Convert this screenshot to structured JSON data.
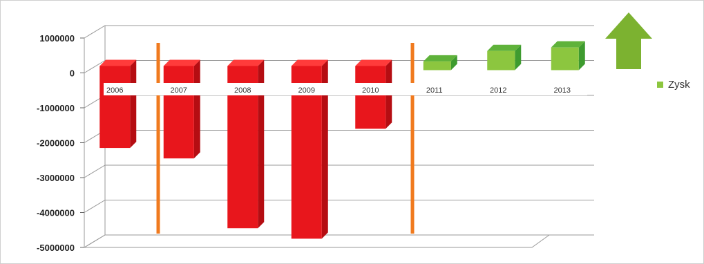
{
  "chart_data": {
    "type": "bar",
    "categories": [
      "2006",
      "2007",
      "2008",
      "2009",
      "2010",
      "2011",
      "2012",
      "2013"
    ],
    "series": [
      {
        "name": "Zysk",
        "values": [
          -2150000,
          -2450000,
          -4450000,
          -4750000,
          -1600000,
          250000,
          550000,
          650000
        ]
      }
    ],
    "y_ticks": [
      "1000000",
      "0",
      "-1000000",
      "-2000000",
      "-3000000",
      "-4000000",
      "-5000000"
    ],
    "ylim": [
      -5000000,
      1000000
    ],
    "legend": {
      "label": "Zysk",
      "position": "right"
    },
    "grid": true,
    "colors": {
      "negative": "#e8161c",
      "negative_side": "#b50d12",
      "positive": "#8cc63f",
      "positive_side": "#3e9b2f",
      "legend_marker": "#8cc63f",
      "divider": "#f07a1e",
      "arrow": "#7cb230"
    },
    "arrow_icon": "up-arrow-icon"
  }
}
